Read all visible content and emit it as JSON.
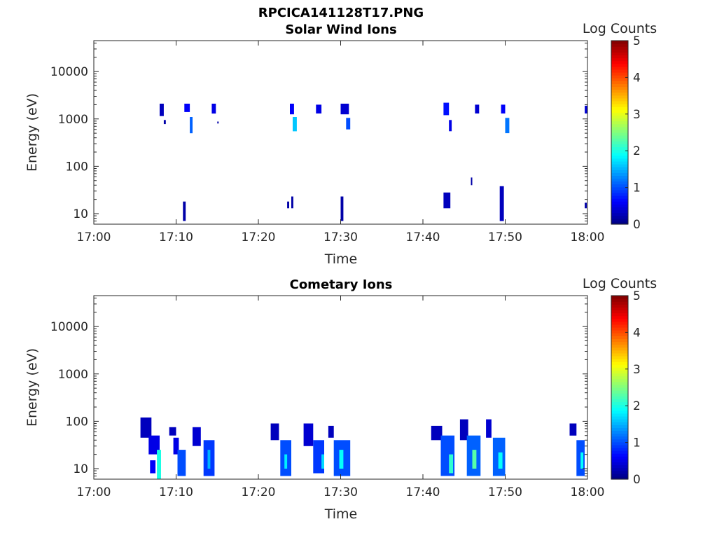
{
  "figure_title": "RPCICA141128T17.PNG",
  "colorbar": {
    "label": "Log Counts",
    "ticks": [
      "0",
      "1",
      "2",
      "3",
      "4",
      "5"
    ],
    "range": [
      0,
      5
    ],
    "colormap": "jet"
  },
  "chart_data": [
    {
      "type": "heatmap",
      "title": "Solar Wind Ions",
      "xlabel": "Time",
      "ylabel": "Energy (eV)",
      "x_ticks": [
        "17:00",
        "17:10",
        "17:20",
        "17:30",
        "17:40",
        "17:50",
        "18:00"
      ],
      "xlim": [
        "17:00",
        "18:00"
      ],
      "y_scale": "log",
      "y_ticks": [
        "10",
        "100",
        "1000",
        "10000"
      ],
      "ylim": [
        6,
        45000
      ],
      "cells": [
        {
          "t0": "17:08:00",
          "t1": "17:08:30",
          "e0": 1150,
          "e1": 2100,
          "v": 0.3
        },
        {
          "t0": "17:08:30",
          "t1": "17:08:45",
          "e0": 780,
          "e1": 950,
          "v": 0.2
        },
        {
          "t0": "17:11:00",
          "t1": "17:11:40",
          "e0": 1400,
          "e1": 2100,
          "v": 0.6
        },
        {
          "t0": "17:11:40",
          "t1": "17:12:00",
          "e0": 500,
          "e1": 1100,
          "v": 1.1
        },
        {
          "t0": "17:14:20",
          "t1": "17:14:50",
          "e0": 1300,
          "e1": 2100,
          "v": 0.5
        },
        {
          "t0": "17:15:00",
          "t1": "17:15:10",
          "e0": 800,
          "e1": 880,
          "v": 0.2
        },
        {
          "t0": "17:23:50",
          "t1": "17:24:20",
          "e0": 1250,
          "e1": 2100,
          "v": 0.6
        },
        {
          "t0": "17:24:10",
          "t1": "17:24:40",
          "e0": 550,
          "e1": 1100,
          "v": 1.6
        },
        {
          "t0": "17:27:00",
          "t1": "17:27:40",
          "e0": 1300,
          "e1": 2000,
          "v": 0.5
        },
        {
          "t0": "17:30:00",
          "t1": "17:31:00",
          "e0": 1250,
          "e1": 2100,
          "v": 0.4
        },
        {
          "t0": "17:30:40",
          "t1": "17:31:10",
          "e0": 600,
          "e1": 1050,
          "v": 1.0
        },
        {
          "t0": "17:42:30",
          "t1": "17:43:10",
          "e0": 1200,
          "e1": 2200,
          "v": 0.7
        },
        {
          "t0": "17:43:10",
          "t1": "17:43:30",
          "e0": 550,
          "e1": 950,
          "v": 0.5
        },
        {
          "t0": "17:46:20",
          "t1": "17:46:50",
          "e0": 1300,
          "e1": 2000,
          "v": 0.4
        },
        {
          "t0": "17:49:30",
          "t1": "17:50:00",
          "e0": 1300,
          "e1": 2000,
          "v": 0.6
        },
        {
          "t0": "17:50:00",
          "t1": "17:50:30",
          "e0": 500,
          "e1": 1050,
          "v": 1.2
        },
        {
          "t0": "17:59:40",
          "t1": "18:00:00",
          "e0": 1300,
          "e1": 1900,
          "v": 0.4
        },
        {
          "t0": "17:10:50",
          "t1": "17:11:10",
          "e0": 7,
          "e1": 18,
          "v": 0.2
        },
        {
          "t0": "17:23:30",
          "t1": "17:23:45",
          "e0": 13,
          "e1": 18,
          "v": 0.2
        },
        {
          "t0": "17:24:00",
          "t1": "17:24:15",
          "e0": 13,
          "e1": 23,
          "v": 0.2
        },
        {
          "t0": "17:30:00",
          "t1": "17:30:20",
          "e0": 7,
          "e1": 23,
          "v": 0.2
        },
        {
          "t0": "17:42:30",
          "t1": "17:43:20",
          "e0": 13,
          "e1": 28,
          "v": 0.3
        },
        {
          "t0": "17:45:50",
          "t1": "17:46:00",
          "e0": 40,
          "e1": 58,
          "v": 0.2
        },
        {
          "t0": "17:49:20",
          "t1": "17:49:50",
          "e0": 7,
          "e1": 38,
          "v": 0.3
        },
        {
          "t0": "17:59:40",
          "t1": "17:59:55",
          "e0": 13,
          "e1": 17,
          "v": 0.2
        }
      ]
    },
    {
      "type": "heatmap",
      "title": "Cometary Ions",
      "xlabel": "Time",
      "ylabel": "Energy (eV)",
      "x_ticks": [
        "17:00",
        "17:10",
        "17:20",
        "17:30",
        "17:40",
        "17:50",
        "18:00"
      ],
      "xlim": [
        "17:00",
        "18:00"
      ],
      "y_scale": "log",
      "y_ticks": [
        "10",
        "100",
        "1000",
        "10000"
      ],
      "ylim": [
        6,
        45000
      ],
      "cells": [
        {
          "t0": "17:05:40",
          "t1": "17:07:00",
          "e0": 45,
          "e1": 120,
          "v": 0.3
        },
        {
          "t0": "17:06:40",
          "t1": "17:08:00",
          "e0": 20,
          "e1": 50,
          "v": 0.5
        },
        {
          "t0": "17:07:40",
          "t1": "17:08:10",
          "e0": 6,
          "e1": 25,
          "v": 2.0
        },
        {
          "t0": "17:06:50",
          "t1": "17:07:30",
          "e0": 8,
          "e1": 15,
          "v": 0.6
        },
        {
          "t0": "17:09:10",
          "t1": "17:10:00",
          "e0": 50,
          "e1": 75,
          "v": 0.3
        },
        {
          "t0": "17:09:40",
          "t1": "17:10:20",
          "e0": 20,
          "e1": 45,
          "v": 0.5
        },
        {
          "t0": "17:10:10",
          "t1": "17:11:10",
          "e0": 7,
          "e1": 25,
          "v": 1.0
        },
        {
          "t0": "17:12:00",
          "t1": "17:13:00",
          "e0": 30,
          "e1": 75,
          "v": 0.4
        },
        {
          "t0": "17:13:20",
          "t1": "17:14:40",
          "e0": 7,
          "e1": 40,
          "v": 0.9
        },
        {
          "t0": "17:13:50",
          "t1": "17:14:10",
          "e0": 10,
          "e1": 25,
          "v": 1.5
        },
        {
          "t0": "17:21:30",
          "t1": "17:22:30",
          "e0": 40,
          "e1": 90,
          "v": 0.3
        },
        {
          "t0": "17:22:40",
          "t1": "17:24:00",
          "e0": 7,
          "e1": 40,
          "v": 1.0
        },
        {
          "t0": "17:23:10",
          "t1": "17:23:30",
          "e0": 10,
          "e1": 20,
          "v": 1.8
        },
        {
          "t0": "17:25:30",
          "t1": "17:26:40",
          "e0": 30,
          "e1": 90,
          "v": 0.4
        },
        {
          "t0": "17:26:40",
          "t1": "17:28:00",
          "e0": 8,
          "e1": 40,
          "v": 0.9
        },
        {
          "t0": "17:27:40",
          "t1": "17:28:00",
          "e0": 10,
          "e1": 20,
          "v": 1.7
        },
        {
          "t0": "17:28:30",
          "t1": "17:29:10",
          "e0": 45,
          "e1": 80,
          "v": 0.3
        },
        {
          "t0": "17:29:10",
          "t1": "17:31:10",
          "e0": 7,
          "e1": 40,
          "v": 1.0
        },
        {
          "t0": "17:29:50",
          "t1": "17:30:20",
          "e0": 10,
          "e1": 25,
          "v": 1.9
        },
        {
          "t0": "17:41:00",
          "t1": "17:42:20",
          "e0": 40,
          "e1": 80,
          "v": 0.3
        },
        {
          "t0": "17:42:10",
          "t1": "17:43:50",
          "e0": 7,
          "e1": 50,
          "v": 1.0
        },
        {
          "t0": "17:43:10",
          "t1": "17:43:40",
          "e0": 8,
          "e1": 20,
          "v": 2.1
        },
        {
          "t0": "17:44:30",
          "t1": "17:45:30",
          "e0": 40,
          "e1": 110,
          "v": 0.3
        },
        {
          "t0": "17:45:20",
          "t1": "17:47:00",
          "e0": 7,
          "e1": 50,
          "v": 1.1
        },
        {
          "t0": "17:46:00",
          "t1": "17:46:30",
          "e0": 10,
          "e1": 25,
          "v": 2.3
        },
        {
          "t0": "17:47:40",
          "t1": "17:48:20",
          "e0": 45,
          "e1": 110,
          "v": 0.4
        },
        {
          "t0": "17:48:30",
          "t1": "17:50:00",
          "e0": 7,
          "e1": 45,
          "v": 1.1
        },
        {
          "t0": "17:49:10",
          "t1": "17:49:40",
          "e0": 10,
          "e1": 22,
          "v": 1.9
        },
        {
          "t0": "17:57:50",
          "t1": "17:58:40",
          "e0": 50,
          "e1": 90,
          "v": 0.3
        },
        {
          "t0": "17:58:40",
          "t1": "17:59:40",
          "e0": 7,
          "e1": 40,
          "v": 1.0
        },
        {
          "t0": "17:59:10",
          "t1": "17:59:30",
          "e0": 10,
          "e1": 22,
          "v": 1.9
        }
      ]
    }
  ]
}
